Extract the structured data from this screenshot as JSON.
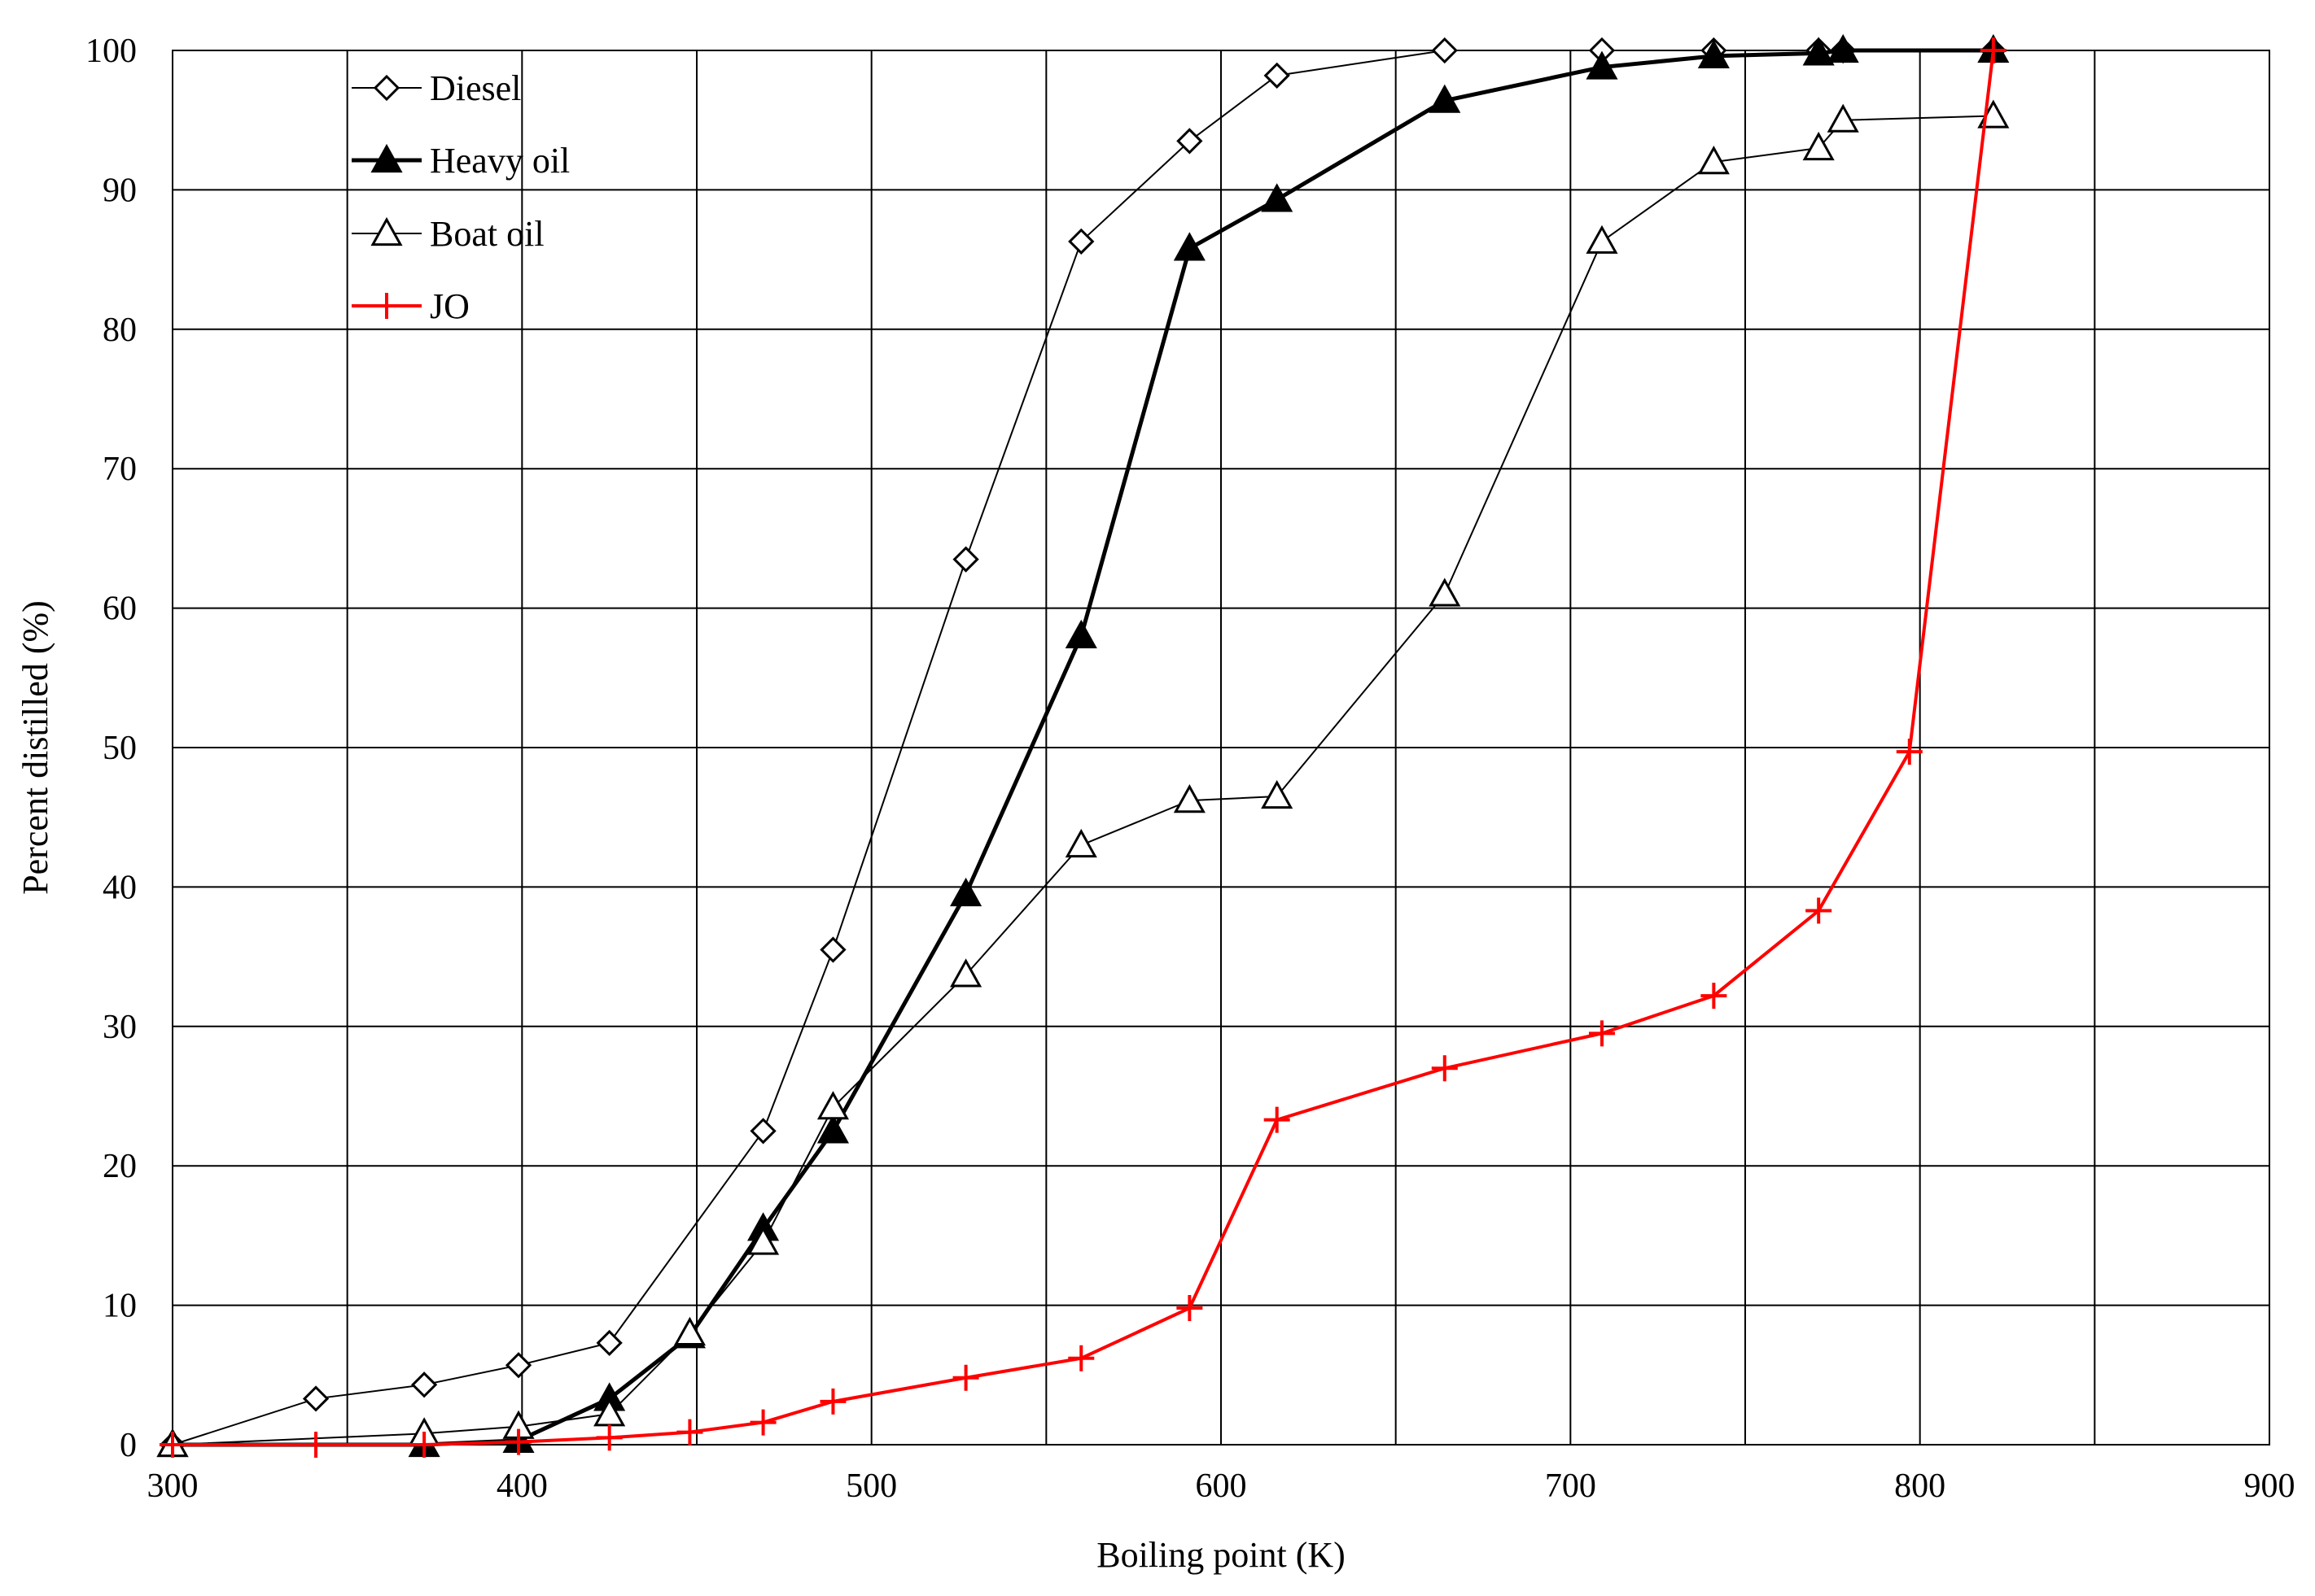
{
  "chart_data": {
    "type": "line",
    "title": "",
    "xlabel": "Boiling point (K)",
    "ylabel": "Percent distilled (%)",
    "xlim": [
      300,
      900
    ],
    "ylim": [
      0,
      100
    ],
    "x_ticks": [
      300,
      400,
      500,
      600,
      700,
      800,
      900
    ],
    "x_tick_labels": [
      "300",
      "400",
      "500",
      "600",
      "700",
      "800",
      "900"
    ],
    "x_grid_step": 50,
    "y_ticks": [
      0,
      10,
      20,
      30,
      40,
      50,
      60,
      70,
      80,
      90,
      100
    ],
    "y_tick_labels": [
      "0",
      "10",
      "20",
      "30",
      "40",
      "50",
      "60",
      "70",
      "80",
      "90",
      "100"
    ],
    "grid": true,
    "legend_position": "top-left",
    "series": [
      {
        "name": "Diesel",
        "marker": "diamond-open",
        "color": "#000000",
        "line_weight": "thin",
        "x": [
          300,
          341,
          372,
          399,
          425,
          469,
          489,
          527,
          560,
          591,
          616,
          664,
          709,
          741,
          771,
          778,
          821
        ],
        "y": [
          0,
          3.3,
          4.3,
          5.7,
          7.3,
          22.5,
          35.5,
          63.5,
          86.3,
          93.5,
          98.2,
          100,
          100,
          100,
          100,
          100,
          100
        ]
      },
      {
        "name": "Heavy oil",
        "marker": "triangle-filled",
        "color": "#000000",
        "line_weight": "thick",
        "x": [
          300,
          372,
          399,
          425,
          448,
          469,
          489,
          527,
          560,
          591,
          616,
          664,
          709,
          741,
          771,
          778,
          821
        ],
        "y": [
          0,
          0,
          0.3,
          3.3,
          7.8,
          15.5,
          22.5,
          39.5,
          58,
          85.8,
          89.3,
          96.4,
          98.8,
          99.6,
          99.8,
          100,
          100
        ]
      },
      {
        "name": "Boat oil",
        "marker": "triangle-open",
        "color": "#000000",
        "line_weight": "thin",
        "x": [
          300,
          372,
          399,
          425,
          448,
          469,
          489,
          527,
          560,
          591,
          616,
          664,
          709,
          741,
          771,
          778,
          821
        ],
        "y": [
          0,
          0.8,
          1.3,
          2.2,
          8,
          14.5,
          24.2,
          33.7,
          43,
          46.2,
          46.5,
          61,
          86.3,
          92,
          93,
          95,
          95.3
        ]
      },
      {
        "name": "JO",
        "marker": "plus",
        "color": "#ff0000",
        "line_weight": "medium",
        "x": [
          300,
          341,
          372,
          399,
          425,
          448,
          469,
          489,
          527,
          560,
          591,
          616,
          664,
          709,
          741,
          771,
          797,
          821
        ],
        "y": [
          0,
          0,
          0,
          0.2,
          0.5,
          0.9,
          1.6,
          3.1,
          4.8,
          6.2,
          9.8,
          23.3,
          27,
          29.5,
          32.2,
          38.3,
          49.7,
          100
        ]
      }
    ]
  }
}
